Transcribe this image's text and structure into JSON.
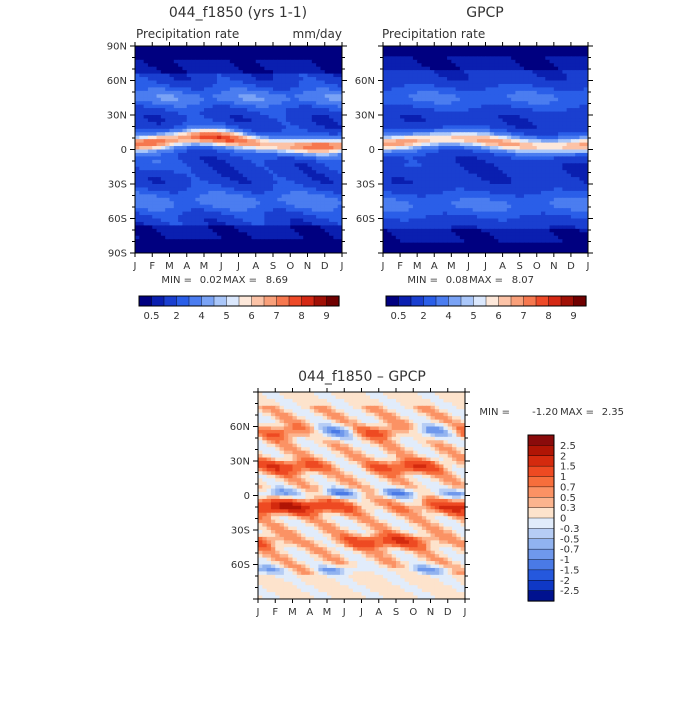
{
  "chart_data": [
    {
      "type": "heatmap",
      "title": "044_f1850 (yrs 1-1)",
      "subtitle_left": "Precipitation rate",
      "subtitle_right": "mm/day",
      "x_ticks": [
        "J",
        "F",
        "M",
        "A",
        "M",
        "J",
        "J",
        "A",
        "S",
        "O",
        "N",
        "D",
        "J"
      ],
      "y_ticks": [
        "90N",
        "60N",
        "30N",
        "0",
        "30S",
        "60S",
        "90S"
      ],
      "ylim": [
        -90,
        90
      ],
      "stats": {
        "min_label": "MIN =",
        "min": "0.02",
        "max_label": "MAX =",
        "max": "8.69"
      },
      "colorbar_labels": [
        "0.5",
        "2",
        "4",
        "5",
        "6",
        "7",
        "8",
        "9"
      ]
    },
    {
      "type": "heatmap",
      "title": "GPCP",
      "subtitle_left": "Precipitation rate",
      "x_ticks": [
        "J",
        "F",
        "M",
        "A",
        "M",
        "J",
        "J",
        "A",
        "S",
        "O",
        "N",
        "D",
        "J"
      ],
      "y_ticks": [
        "60N",
        "30N",
        "0",
        "30S",
        "60S"
      ],
      "ylim": [
        -90,
        90
      ],
      "stats": {
        "min_label": "MIN =",
        "min": "0.08",
        "max_label": "MAX =",
        "max": "8.07"
      },
      "colorbar_labels": [
        "0.5",
        "2",
        "4",
        "5",
        "6",
        "7",
        "8",
        "9"
      ]
    },
    {
      "type": "heatmap",
      "title": "044_f1850 – GPCP",
      "x_ticks": [
        "J",
        "F",
        "M",
        "A",
        "M",
        "J",
        "J",
        "A",
        "S",
        "O",
        "N",
        "D",
        "J"
      ],
      "y_ticks": [
        "60N",
        "30N",
        "0",
        "30S",
        "60S"
      ],
      "ylim": [
        -90,
        90
      ],
      "stats": {
        "min_label": "MIN =",
        "min": "-1.20",
        "max_label": "MAX =",
        "max": "2.35"
      },
      "colorbar_labels": [
        "2.5",
        "2",
        "1.5",
        "1",
        "0.7",
        "0.5",
        "0.3",
        "0",
        "-0.3",
        "-0.5",
        "-0.7",
        "-1",
        "-1.5",
        "-2",
        "-2.5"
      ]
    }
  ],
  "colors": {
    "seq_scale": [
      "#000080",
      "#0a1fb0",
      "#1a3fd0",
      "#2a5ee8",
      "#4b7df0",
      "#7aa3f5",
      "#aac7fa",
      "#dbe8fd",
      "#fde8da",
      "#fcc3a7",
      "#f9a07a",
      "#f6784f",
      "#ee4a28",
      "#d42814",
      "#a01006",
      "#700000"
    ],
    "diff_scale": [
      "#8a0b0b",
      "#b01505",
      "#d42a0e",
      "#ee4a22",
      "#f76e3c",
      "#fb9264",
      "#fcb48e",
      "#fde3cc",
      "#e1ecfb",
      "#b6cdf5",
      "#91b3f0",
      "#6f98ec",
      "#4a7ae6",
      "#2558dd",
      "#0f38c6",
      "#00128f"
    ]
  }
}
